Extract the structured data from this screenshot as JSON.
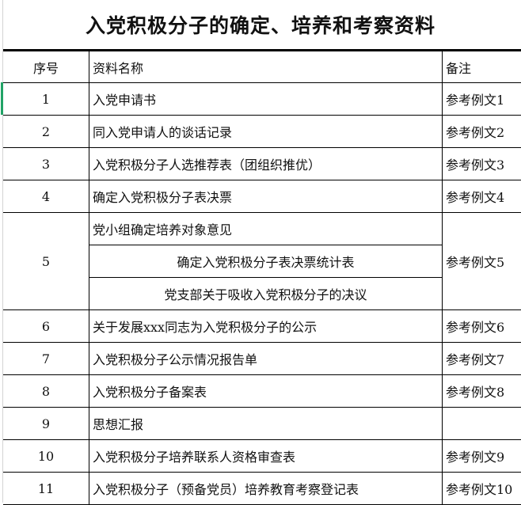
{
  "title": "入党积极分子的确定、培养和考察资料",
  "headers": {
    "no": "序号",
    "name": "资料名称",
    "note": "备注"
  },
  "rows": [
    {
      "no": "1",
      "name": "入党申请书",
      "note": "参考例文1"
    },
    {
      "no": "2",
      "name": "同入党申请人的谈话记录",
      "note": "参考例文2"
    },
    {
      "no": "3",
      "name": "入党积极分子人选推荐表（团组织推优）",
      "note": "参考例文3"
    },
    {
      "no": "4",
      "name": "确定入党积极分子表决票",
      "note": "参考例文4"
    },
    {
      "no": "5",
      "names": [
        "党小组确定培养对象意见",
        "确定入党积极分子表决票统计表",
        "党支部关于吸收入党积极分子的决议"
      ],
      "note": "参考例文5"
    },
    {
      "no": "6",
      "name": "关于发展xxx同志为入党积极分子的公示",
      "note": "参考例文6"
    },
    {
      "no": "7",
      "name": "入党积极分子公示情况报告单",
      "note": "参考例文7"
    },
    {
      "no": "8",
      "name": "入党积极分子备案表",
      "note": "参考例文8"
    },
    {
      "no": "9",
      "name": "思想汇报",
      "note": ""
    },
    {
      "no": "10",
      "name": "入党积极分子培养联系人资格审查表",
      "note": "参考例文9"
    },
    {
      "no": "11",
      "name": "入党积极分子（预备党员）培养教育考察登记表",
      "note": "参考例文10"
    }
  ]
}
